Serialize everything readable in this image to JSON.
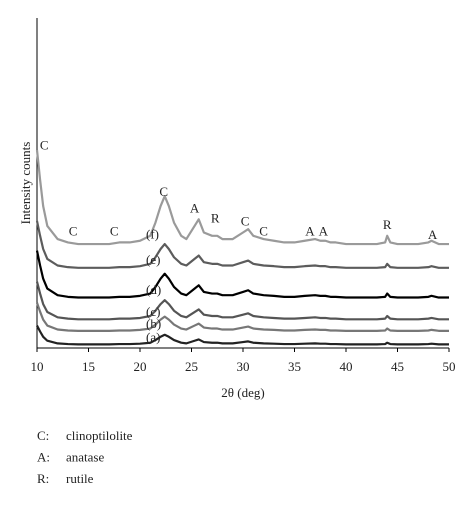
{
  "chart_data": {
    "type": "line",
    "xlabel": "2θ (deg)",
    "ylabel": "Intensity counts",
    "xlim": [
      10,
      50
    ],
    "ylim": [
      0,
      100
    ],
    "xticks": [
      10,
      15,
      20,
      25,
      30,
      35,
      40,
      45,
      50
    ],
    "x": [
      10,
      10.3,
      10.6,
      11,
      12,
      13,
      14,
      15,
      16,
      17,
      18,
      19,
      20,
      21,
      21.5,
      22,
      22.4,
      22.8,
      23.3,
      24,
      24.5,
      25.3,
      25.7,
      26.2,
      27,
      27.5,
      28,
      29,
      30,
      30.5,
      31,
      32,
      33,
      34,
      35,
      36,
      37,
      37.5,
      38,
      38.5,
      39,
      40,
      41,
      42,
      43,
      43.8,
      44,
      44.3,
      45,
      46,
      47,
      48,
      48.3,
      49,
      50
    ],
    "series": [
      {
        "name": "(a)",
        "color": "#222222",
        "values": [
          6.8,
          5,
          3.4,
          2.2,
          1.4,
          1.2,
          1.1,
          1.1,
          1.1,
          1.1,
          1.2,
          1.2,
          1.3,
          1.6,
          2.4,
          3.4,
          4,
          3.4,
          2.4,
          1.6,
          1.4,
          2.2,
          2.6,
          1.8,
          1.6,
          1.6,
          1.4,
          1.4,
          1.8,
          2,
          1.6,
          1.4,
          1.3,
          1.2,
          1.2,
          1.3,
          1.4,
          1.3,
          1.3,
          1.2,
          1.2,
          1.1,
          1.1,
          1.1,
          1.1,
          1.2,
          1.6,
          1.2,
          1.1,
          1.1,
          1.1,
          1.2,
          1.3,
          1.1,
          1.1
        ]
      },
      {
        "name": "(b)",
        "color": "#777777",
        "values": [
          13.7,
          11,
          8.6,
          6.8,
          5.6,
          5.3,
          5.2,
          5.2,
          5.2,
          5.2,
          5.3,
          5.3,
          5.5,
          5.9,
          7.1,
          8.6,
          9.5,
          8.6,
          7.1,
          5.9,
          5.6,
          6.8,
          7.4,
          6.2,
          5.9,
          5.9,
          5.6,
          5.6,
          6.2,
          6.5,
          5.9,
          5.6,
          5.5,
          5.3,
          5.3,
          5.5,
          5.6,
          5.5,
          5.5,
          5.3,
          5.3,
          5.2,
          5.2,
          5.2,
          5.2,
          5.3,
          5.9,
          5.3,
          5.2,
          5.2,
          5.2,
          5.3,
          5.5,
          5.2,
          5.2
        ]
      },
      {
        "name": "(c)",
        "color": "#555555",
        "values": [
          20.1,
          16.5,
          13.3,
          10.9,
          9.3,
          8.9,
          8.7,
          8.7,
          8.7,
          8.7,
          8.9,
          8.9,
          9.1,
          9.7,
          11.3,
          13.3,
          14.5,
          13.3,
          11.3,
          9.7,
          9.3,
          10.9,
          11.7,
          10.1,
          9.7,
          9.7,
          9.3,
          9.3,
          10.1,
          10.5,
          9.7,
          9.3,
          9.1,
          8.9,
          8.9,
          9.1,
          9.3,
          9.1,
          9.1,
          8.9,
          8.9,
          8.7,
          8.7,
          8.7,
          8.7,
          8.9,
          9.7,
          8.9,
          8.7,
          8.7,
          8.7,
          8.9,
          9.1,
          8.7,
          8.7
        ]
      },
      {
        "name": "(d)",
        "color": "#000000",
        "values": [
          29.5,
          25,
          21,
          18,
          16,
          15.5,
          15.3,
          15.3,
          15.3,
          15.3,
          15.5,
          15.5,
          15.8,
          16.5,
          18.5,
          21,
          22.5,
          21,
          18.5,
          16.5,
          16,
          18,
          19,
          17,
          16.5,
          16.5,
          16,
          16,
          17,
          17.5,
          16.5,
          16,
          15.8,
          15.5,
          15.5,
          15.8,
          16,
          15.8,
          15.8,
          15.5,
          15.5,
          15.3,
          15.3,
          15.3,
          15.3,
          15.5,
          16.5,
          15.5,
          15.3,
          15.3,
          15.3,
          15.5,
          15.8,
          15.3,
          15.3
        ]
      },
      {
        "name": "(e)",
        "color": "#5c5c5c",
        "values": [
          38.5,
          34,
          30,
          27,
          25,
          24.5,
          24.3,
          24.3,
          24.3,
          24.3,
          24.5,
          24.5,
          24.8,
          25.5,
          27.5,
          30,
          31.5,
          30,
          27.5,
          25.5,
          25,
          27,
          28,
          26,
          25.5,
          25.5,
          25,
          25,
          26,
          26.5,
          25.5,
          25,
          24.8,
          24.5,
          24.5,
          24.8,
          25,
          24.8,
          24.8,
          24.5,
          24.5,
          24.3,
          24.3,
          24.3,
          24.3,
          24.5,
          25.5,
          24.5,
          24.3,
          24.3,
          24.3,
          24.5,
          24.8,
          24.3,
          24.3
        ]
      },
      {
        "name": "(f)",
        "color": "#9a9a9a",
        "values": [
          60,
          51,
          43,
          37,
          33,
          32,
          31.5,
          31.5,
          31.5,
          31.5,
          32,
          32,
          32.5,
          34,
          38,
          43,
          46,
          43,
          38,
          34,
          33,
          37,
          39,
          35,
          34,
          34,
          33,
          33,
          35,
          36,
          34,
          33,
          32.5,
          32,
          32,
          32.5,
          33,
          32.5,
          32.5,
          32,
          32,
          31.5,
          31.5,
          31.5,
          31.5,
          32,
          34,
          32,
          31.5,
          31.5,
          31.5,
          32,
          32.5,
          31.5,
          31.5
        ]
      }
    ],
    "annotations": [
      {
        "text": "C",
        "x": 10.7,
        "y": 61
      },
      {
        "text": "C",
        "x": 13.5,
        "y": 35
      },
      {
        "text": "C",
        "x": 17.5,
        "y": 35
      },
      {
        "text": "C",
        "x": 22.3,
        "y": 47
      },
      {
        "text": "A",
        "x": 25.3,
        "y": 42
      },
      {
        "text": "R",
        "x": 27.3,
        "y": 39
      },
      {
        "text": "C",
        "x": 30.2,
        "y": 38
      },
      {
        "text": "C",
        "x": 32,
        "y": 35
      },
      {
        "text": "A",
        "x": 36.5,
        "y": 35
      },
      {
        "text": "A",
        "x": 37.8,
        "y": 35
      },
      {
        "text": "R",
        "x": 44,
        "y": 37
      },
      {
        "text": "A",
        "x": 48.4,
        "y": 34
      }
    ],
    "notes": [
      {
        "key": "C:",
        "text": "clinoptilolite"
      },
      {
        "key": "A:",
        "text": "anatase"
      },
      {
        "key": "R:",
        "text": "rutile"
      }
    ]
  }
}
